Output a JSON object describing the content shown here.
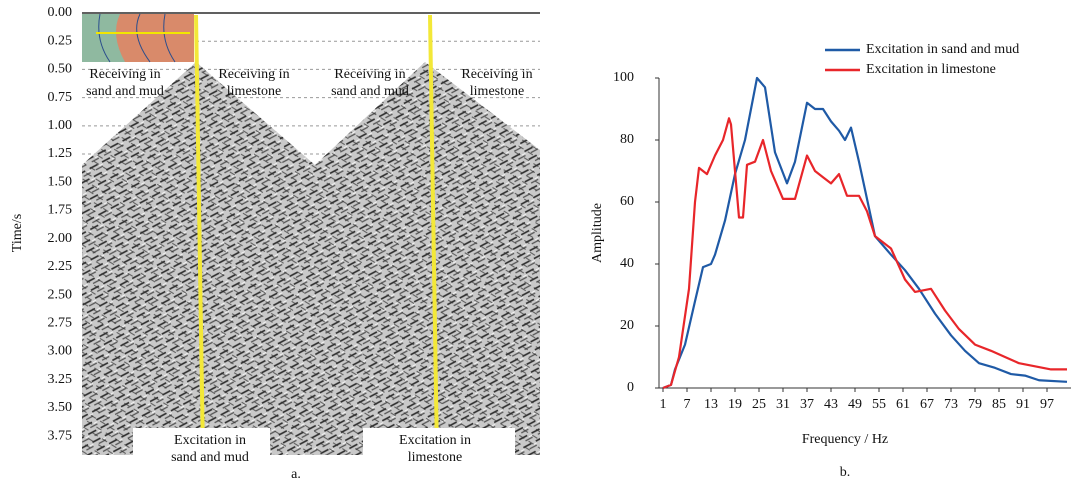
{
  "chart_data": [
    {
      "type": "seismic",
      "y_label": "Time/s",
      "caption": "a.",
      "ylim": [
        0,
        3.9
      ],
      "yticks": [
        {
          "value": 0,
          "label": "0.00"
        },
        {
          "value": 0.25,
          "label": "0.25"
        },
        {
          "value": 0.5,
          "label": "0.50"
        },
        {
          "value": 0.75,
          "label": "0.75"
        },
        {
          "value": 1,
          "label": "1.00"
        },
        {
          "value": 1.25,
          "label": "1.25"
        },
        {
          "value": 1.5,
          "label": "1.50"
        },
        {
          "value": 1.75,
          "label": "1.75"
        },
        {
          "value": 2,
          "label": "2.00"
        },
        {
          "value": 2.25,
          "label": "2.25"
        },
        {
          "value": 2.5,
          "label": "2.50"
        },
        {
          "value": 2.75,
          "label": "2.75"
        },
        {
          "value": 3,
          "label": "3.00"
        },
        {
          "value": 3.25,
          "label": "3.25"
        },
        {
          "value": 3.5,
          "label": "3.50"
        },
        {
          "value": 3.75,
          "label": "3.75"
        }
      ],
      "grid": true,
      "annotations": [
        {
          "lines": [
            "Receiving in",
            "sand and mud"
          ]
        },
        {
          "lines": [
            "Receiving in",
            "limestone"
          ]
        },
        {
          "lines": [
            "Receiving in",
            "sand and mud"
          ]
        },
        {
          "lines": [
            "Receiving in",
            "limestone"
          ]
        },
        {
          "lines": [
            "Excitation in",
            "sand and mud"
          ]
        },
        {
          "lines": [
            "Excitation in",
            "limestone"
          ]
        }
      ]
    },
    {
      "type": "line",
      "x_label": "Frequency / Hz",
      "y_label": "Amplitude",
      "caption": "b.",
      "xlim": [
        0,
        103
      ],
      "ylim": [
        0,
        100
      ],
      "xticks": [
        1,
        7,
        13,
        19,
        25,
        31,
        37,
        43,
        49,
        55,
        61,
        67,
        73,
        79,
        85,
        91,
        97
      ],
      "yticks": [
        0,
        20,
        40,
        60,
        80,
        100
      ],
      "legend": "top-right",
      "series": [
        {
          "name": "Excitation in sand and mud",
          "color": "#1f5aa6",
          "x": [
            1,
            3,
            4,
            6.5,
            9,
            11,
            13,
            14,
            16.5,
            19,
            21.5,
            23,
            24.5,
            26.5,
            29,
            32,
            34,
            37,
            39,
            41,
            43,
            45,
            46.5,
            48,
            50,
            51.5,
            54,
            58,
            61.5,
            65,
            69,
            73,
            76.5,
            80,
            84,
            88,
            91.5,
            95,
            102
          ],
          "values": [
            0,
            1,
            6,
            14,
            28,
            39,
            40,
            43,
            54,
            69,
            80,
            90,
            100,
            97,
            76,
            66,
            73,
            92,
            90,
            90,
            86,
            83,
            80,
            84,
            73,
            64,
            49,
            43,
            38,
            32,
            24,
            17,
            12,
            8,
            6.5,
            4.5,
            4,
            2.5,
            2
          ]
        },
        {
          "name": "Excitation in limestone",
          "color": "#e8262a",
          "x": [
            1,
            3,
            5,
            7.5,
            9,
            10,
            12,
            14,
            16,
            17.5,
            18,
            20,
            21,
            22,
            24,
            26,
            28,
            31,
            34,
            37,
            39,
            41,
            43,
            45,
            47,
            50,
            52,
            54,
            58,
            61.5,
            64,
            68,
            71.5,
            75,
            79,
            83,
            86.5,
            90,
            94,
            98,
            102
          ],
          "values": [
            0,
            1,
            10,
            32,
            60,
            71,
            69,
            75,
            80,
            87,
            85,
            55,
            55,
            72,
            73,
            80,
            70,
            61,
            61,
            75,
            70,
            68,
            66,
            69,
            62,
            62,
            57,
            49,
            45,
            35,
            31,
            32,
            25,
            19,
            14,
            12,
            10,
            8,
            7,
            6,
            6
          ]
        }
      ]
    }
  ]
}
